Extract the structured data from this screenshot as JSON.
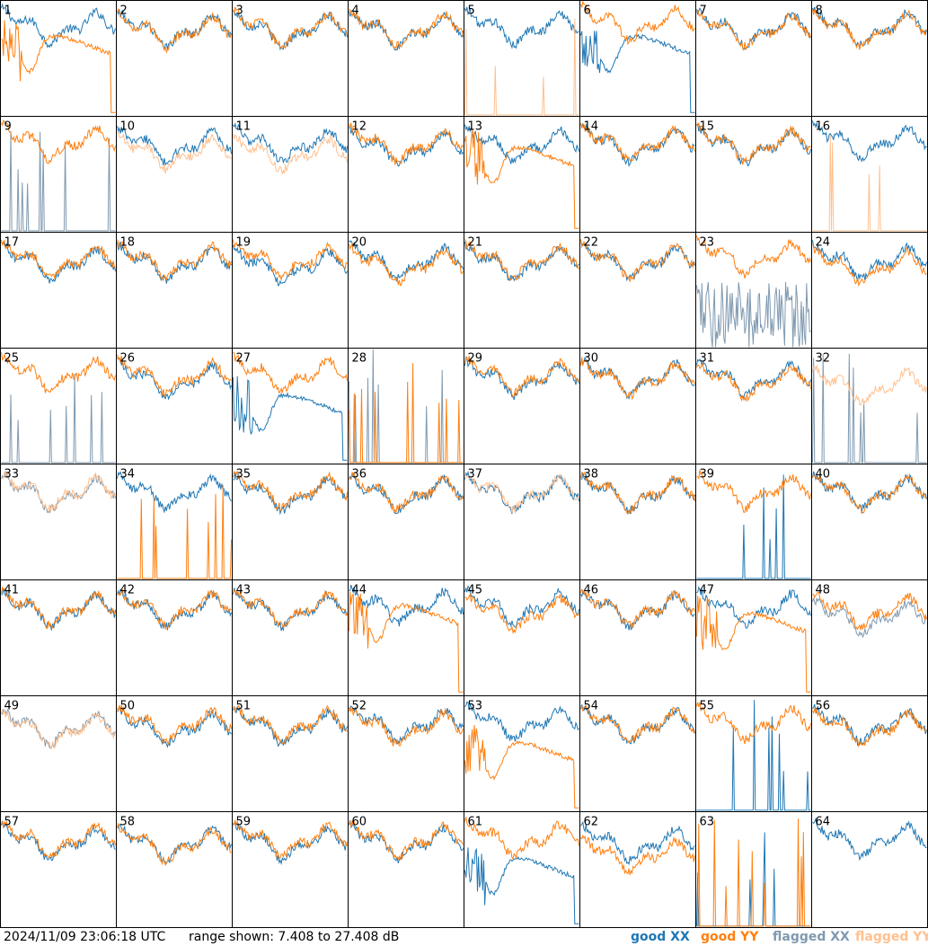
{
  "footer": {
    "timestamp": "2024/11/09 23:06:18 UTC",
    "range_text": "range shown: 7.408 to 27.408 dB"
  },
  "legend": {
    "good_xx": "good XX",
    "good_yy": "good YY",
    "flagged_xx": "flagged XX",
    "flagged_yy": "flagged YY"
  },
  "colors": {
    "good_xx": "#1f77b4",
    "good_yy": "#ff7f0e",
    "flagged_xx": "#7f99b0",
    "flagged_yy": "#ffc08f"
  },
  "chart_data": {
    "type": "line",
    "title": "",
    "xlabel": "",
    "ylabel": "",
    "ylim": [
      7.408,
      27.408
    ],
    "y_unit": "dB",
    "grid_rows": 8,
    "grid_cols": 8,
    "series_names": [
      "good XX",
      "good YY",
      "flagged XX",
      "flagged YY"
    ],
    "panels": [
      {
        "id": "1",
        "xx": "good",
        "yy": "good",
        "xx_mean": 23.0,
        "yy_mean": 19.5,
        "yy_shape": "dip"
      },
      {
        "id": "2",
        "xx": "good",
        "yy": "good",
        "xx_mean": 22.4,
        "yy_mean": 22.2
      },
      {
        "id": "3",
        "xx": "good",
        "yy": "good",
        "xx_mean": 22.4,
        "yy_mean": 22.6
      },
      {
        "id": "4",
        "xx": "good",
        "yy": "good",
        "xx_mean": 22.4,
        "yy_mean": 22.6
      },
      {
        "id": "5",
        "xx": "good",
        "yy": "flagged",
        "xx_mean": 22.8,
        "yy_mean": 7.5,
        "yy_shape": "spiky"
      },
      {
        "id": "6",
        "xx": "good",
        "yy": "good",
        "xx_mean": 19.5,
        "yy_mean": 23.5,
        "xx_shape": "dip"
      },
      {
        "id": "7",
        "xx": "good",
        "yy": "good",
        "xx_mean": 22.6,
        "yy_mean": 22.4
      },
      {
        "id": "8",
        "xx": "good",
        "yy": "good",
        "xx_mean": 22.8,
        "yy_mean": 22.6
      },
      {
        "id": "9",
        "xx": "flagged",
        "yy": "good",
        "xx_mean": 8.0,
        "yy_mean": 23.0,
        "xx_shape": "spiky"
      },
      {
        "id": "10",
        "xx": "good",
        "yy": "flagged",
        "xx_mean": 22.4,
        "yy_mean": 21.2
      },
      {
        "id": "11",
        "xx": "good",
        "yy": "flagged",
        "xx_mean": 22.6,
        "yy_mean": 21.0
      },
      {
        "id": "12",
        "xx": "good",
        "yy": "good",
        "xx_mean": 22.0,
        "yy_mean": 22.6
      },
      {
        "id": "13",
        "xx": "good",
        "yy": "good",
        "xx_mean": 22.6,
        "yy_mean": 20.2,
        "yy_shape": "dip"
      },
      {
        "id": "14",
        "xx": "good",
        "yy": "good",
        "xx_mean": 22.6,
        "yy_mean": 22.8
      },
      {
        "id": "15",
        "xx": "good",
        "yy": "good",
        "xx_mean": 22.4,
        "yy_mean": 22.6
      },
      {
        "id": "16",
        "xx": "good",
        "yy": "flagged",
        "xx_mean": 23.2,
        "yy_mean": 7.5,
        "yy_shape": "spiky"
      },
      {
        "id": "17",
        "xx": "good",
        "yy": "good",
        "xx_mean": 22.2,
        "yy_mean": 22.6
      },
      {
        "id": "18",
        "xx": "good",
        "yy": "good",
        "xx_mean": 22.2,
        "yy_mean": 22.6
      },
      {
        "id": "19",
        "xx": "good",
        "yy": "good",
        "xx_mean": 21.6,
        "yy_mean": 22.6
      },
      {
        "id": "20",
        "xx": "good",
        "yy": "good",
        "xx_mean": 22.4,
        "yy_mean": 21.8
      },
      {
        "id": "21",
        "xx": "good",
        "yy": "good",
        "xx_mean": 22.2,
        "yy_mean": 22.6
      },
      {
        "id": "22",
        "xx": "good",
        "yy": "good",
        "xx_mean": 22.4,
        "yy_mean": 22.6
      },
      {
        "id": "23",
        "xx": "flagged",
        "yy": "good",
        "xx_mean": 13.0,
        "yy_mean": 23.2,
        "xx_shape": "noisy"
      },
      {
        "id": "24",
        "xx": "good",
        "yy": "good",
        "xx_mean": 22.4,
        "yy_mean": 21.6
      },
      {
        "id": "25",
        "xx": "flagged",
        "yy": "good",
        "xx_mean": 7.5,
        "yy_mean": 23.0,
        "xx_shape": "spiky"
      },
      {
        "id": "26",
        "xx": "good",
        "yy": "good",
        "xx_mean": 22.0,
        "yy_mean": 22.6
      },
      {
        "id": "27",
        "xx": "good",
        "yy": "good",
        "xx_mean": 17.5,
        "yy_mean": 23.0,
        "xx_shape": "dip"
      },
      {
        "id": "28",
        "xx": "flagged",
        "yy": "good",
        "xx_mean": 7.5,
        "yy_mean": 7.8,
        "xx_shape": "spiky",
        "yy_shape": "spiky"
      },
      {
        "id": "29",
        "xx": "good",
        "yy": "good",
        "xx_mean": 22.2,
        "yy_mean": 22.6
      },
      {
        "id": "30",
        "xx": "good",
        "yy": "good",
        "xx_mean": 22.4,
        "yy_mean": 22.2
      },
      {
        "id": "31",
        "xx": "good",
        "yy": "good",
        "xx_mean": 22.2,
        "yy_mean": 21.8
      },
      {
        "id": "32",
        "xx": "flagged",
        "yy": "flagged",
        "xx_mean": 7.5,
        "yy_mean": 21.0,
        "xx_shape": "spiky"
      },
      {
        "id": "33",
        "xx": "flagged",
        "yy": "flagged",
        "xx_mean": 22.6,
        "yy_mean": 22.8
      },
      {
        "id": "34",
        "xx": "good",
        "yy": "good",
        "xx_mean": 22.6,
        "yy_mean": 8.5,
        "yy_shape": "spiky"
      },
      {
        "id": "35",
        "xx": "good",
        "yy": "good",
        "xx_mean": 22.4,
        "yy_mean": 22.8
      },
      {
        "id": "36",
        "xx": "good",
        "yy": "good",
        "xx_mean": 22.4,
        "yy_mean": 22.6
      },
      {
        "id": "37",
        "xx": "good",
        "yy": "flagged",
        "xx_mean": 22.4,
        "yy_mean": 22.6
      },
      {
        "id": "38",
        "xx": "good",
        "yy": "good",
        "xx_mean": 22.4,
        "yy_mean": 22.6
      },
      {
        "id": "39",
        "xx": "good",
        "yy": "good",
        "xx_mean": 7.5,
        "yy_mean": 22.8,
        "xx_shape": "spiky"
      },
      {
        "id": "40",
        "xx": "good",
        "yy": "good",
        "xx_mean": 22.6,
        "yy_mean": 22.6
      },
      {
        "id": "41",
        "xx": "good",
        "yy": "good",
        "xx_mean": 22.4,
        "yy_mean": 22.6
      },
      {
        "id": "42",
        "xx": "good",
        "yy": "good",
        "xx_mean": 22.4,
        "yy_mean": 22.6
      },
      {
        "id": "43",
        "xx": "good",
        "yy": "good",
        "xx_mean": 22.4,
        "yy_mean": 22.6
      },
      {
        "id": "44",
        "xx": "good",
        "yy": "good",
        "xx_mean": 23.0,
        "yy_mean": 21.2,
        "yy_shape": "dip"
      },
      {
        "id": "45",
        "xx": "good",
        "yy": "good",
        "xx_mean": 22.8,
        "yy_mean": 21.8
      },
      {
        "id": "46",
        "xx": "good",
        "yy": "good",
        "xx_mean": 22.4,
        "yy_mean": 22.6
      },
      {
        "id": "47",
        "xx": "good",
        "yy": "good",
        "xx_mean": 22.6,
        "yy_mean": 19.8,
        "yy_shape": "dip"
      },
      {
        "id": "48",
        "xx": "flagged",
        "yy": "good",
        "xx_mean": 21.0,
        "yy_mean": 22.2
      },
      {
        "id": "49",
        "xx": "flagged",
        "yy": "flagged",
        "xx_mean": 22.0,
        "yy_mean": 21.6
      },
      {
        "id": "50",
        "xx": "good",
        "yy": "good",
        "xx_mean": 22.0,
        "yy_mean": 22.6
      },
      {
        "id": "51",
        "xx": "good",
        "yy": "good",
        "xx_mean": 22.2,
        "yy_mean": 22.6
      },
      {
        "id": "52",
        "xx": "good",
        "yy": "good",
        "xx_mean": 22.6,
        "yy_mean": 22.0
      },
      {
        "id": "53",
        "xx": "good",
        "yy": "good",
        "xx_mean": 22.8,
        "yy_mean": 17.5,
        "yy_shape": "dip"
      },
      {
        "id": "54",
        "xx": "good",
        "yy": "good",
        "xx_mean": 22.4,
        "yy_mean": 22.6
      },
      {
        "id": "55",
        "xx": "good",
        "yy": "good",
        "xx_mean": 8.5,
        "yy_mean": 22.8,
        "xx_shape": "spiky"
      },
      {
        "id": "56",
        "xx": "good",
        "yy": "good",
        "xx_mean": 22.4,
        "yy_mean": 22.0
      },
      {
        "id": "57",
        "xx": "good",
        "yy": "good",
        "xx_mean": 22.2,
        "yy_mean": 22.6
      },
      {
        "id": "58",
        "xx": "good",
        "yy": "good",
        "xx_mean": 22.0,
        "yy_mean": 21.8
      },
      {
        "id": "59",
        "xx": "good",
        "yy": "good",
        "xx_mean": 22.2,
        "yy_mean": 22.6
      },
      {
        "id": "60",
        "xx": "good",
        "yy": "good",
        "xx_mean": 22.2,
        "yy_mean": 22.6
      },
      {
        "id": "61",
        "xx": "good",
        "yy": "good",
        "xx_mean": 17.5,
        "yy_mean": 22.8,
        "xx_shape": "dip"
      },
      {
        "id": "62",
        "xx": "good",
        "yy": "good",
        "xx_mean": 22.0,
        "yy_mean": 20.0
      },
      {
        "id": "63",
        "xx": "good",
        "yy": "good",
        "xx_mean": 7.5,
        "yy_mean": 7.8,
        "xx_shape": "spiky",
        "yy_shape": "spiky"
      },
      {
        "id": "64",
        "xx": "good",
        "yy": "none",
        "xx_mean": 22.6,
        "yy_mean": null
      }
    ]
  }
}
